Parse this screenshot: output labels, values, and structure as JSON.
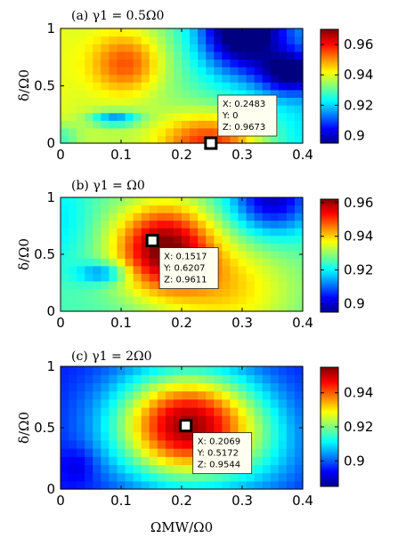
{
  "chart_data": [
    {
      "type": "heatmap",
      "title": "(a) γ1 = 0.5Ω0",
      "xlabel": "",
      "ylabel": "δ/Ω0",
      "xlim": [
        0,
        0.4
      ],
      "ylim": [
        0,
        1
      ],
      "x_ticks": [
        "0",
        "0.1",
        "0.2",
        "0.3",
        "0.4"
      ],
      "y_ticks": [
        "0",
        "0.5",
        "1"
      ],
      "colorbar": {
        "range": [
          0.895,
          0.97
        ],
        "ticks": [
          "0.9",
          "0.92",
          "0.94",
          "0.96"
        ],
        "tick_values": [
          0.9,
          0.92,
          0.94,
          0.96
        ]
      },
      "datatip": {
        "x": 0.2483,
        "y": 0,
        "z": 0.9673,
        "lines": [
          "X: 0.2483",
          "Y: 0",
          "Z: 0.9673"
        ]
      }
    },
    {
      "type": "heatmap",
      "title": "(b) γ1 = Ω0",
      "xlabel": "",
      "ylabel": "δ/Ω0",
      "xlim": [
        0,
        0.4
      ],
      "ylim": [
        0,
        1
      ],
      "x_ticks": [
        "0",
        "0.1",
        "0.2",
        "0.3",
        "0.4"
      ],
      "y_ticks": [
        "0",
        "0.5",
        "1"
      ],
      "colorbar": {
        "range": [
          0.895,
          0.962
        ],
        "ticks": [
          "0.9",
          "0.92",
          "0.94",
          "0.96"
        ],
        "tick_values": [
          0.9,
          0.92,
          0.94,
          0.96
        ]
      },
      "datatip": {
        "x": 0.1517,
        "y": 0.6207,
        "z": 0.9611,
        "lines": [
          "X: 0.1517",
          "Y: 0.6207",
          "Z: 0.9611"
        ]
      }
    },
    {
      "type": "heatmap",
      "title": "(c) γ1 = 2Ω0",
      "xlabel": "ΩMW/Ω0",
      "ylabel": "δ/Ω0",
      "xlim": [
        0,
        0.4
      ],
      "ylim": [
        0,
        1
      ],
      "x_ticks": [
        "0",
        "0.1",
        "0.2",
        "0.3",
        "0.4"
      ],
      "y_ticks": [
        "0",
        "0.5",
        "1"
      ],
      "colorbar": {
        "range": [
          0.885,
          0.955
        ],
        "ticks": [
          "0.9",
          "0.92",
          "0.94"
        ],
        "tick_values": [
          0.9,
          0.92,
          0.94
        ]
      },
      "datatip": {
        "x": 0.2069,
        "y": 0.5172,
        "z": 0.9544,
        "lines": [
          "X: 0.2069",
          "Y: 0.5172",
          "Z: 0.9544"
        ]
      }
    }
  ]
}
